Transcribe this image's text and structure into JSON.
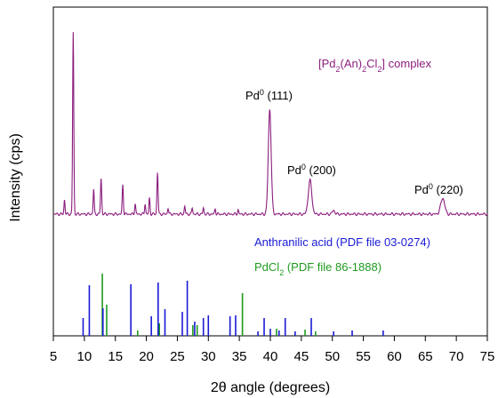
{
  "chart_data": {
    "type": "line",
    "xlabel": "2θ angle (degrees)",
    "ylabel": "Intensity (cps)",
    "xlim": [
      5,
      75
    ],
    "x_ticks": [
      5,
      10,
      15,
      20,
      25,
      30,
      35,
      40,
      45,
      50,
      55,
      60,
      65,
      70,
      75
    ],
    "grid": false,
    "series": [
      {
        "name": "[Pd2(An)2Cl2] complex",
        "color": "#8B1E7E",
        "baseline": 10,
        "peaks": [
          {
            "x": 6.8,
            "h": 16,
            "w": 0.12
          },
          {
            "x": 8.2,
            "h": 205,
            "w": 0.13
          },
          {
            "x": 11.5,
            "h": 28,
            "w": 0.12
          },
          {
            "x": 12.7,
            "h": 40,
            "w": 0.13
          },
          {
            "x": 16.2,
            "h": 33,
            "w": 0.13
          },
          {
            "x": 18.2,
            "h": 12,
            "w": 0.12
          },
          {
            "x": 19.8,
            "h": 12,
            "w": 0.12
          },
          {
            "x": 20.5,
            "h": 18,
            "w": 0.12
          },
          {
            "x": 21.8,
            "h": 47,
            "w": 0.13
          },
          {
            "x": 23.5,
            "h": 7,
            "w": 0.12
          },
          {
            "x": 26.2,
            "h": 9,
            "w": 0.12
          },
          {
            "x": 27.4,
            "h": 7,
            "w": 0.12
          },
          {
            "x": 29.2,
            "h": 7,
            "w": 0.12
          },
          {
            "x": 31.1,
            "h": 6,
            "w": 0.12
          },
          {
            "x": 34.8,
            "h": 5,
            "w": 0.12
          },
          {
            "x": 39.9,
            "h": 118,
            "w": 0.33
          },
          {
            "x": 46.4,
            "h": 38,
            "w": 0.4
          },
          {
            "x": 50.2,
            "h": 4,
            "w": 0.3
          },
          {
            "x": 67.8,
            "h": 18,
            "w": 0.45
          }
        ]
      },
      {
        "name": "Anthranilic acid (PDF file 03-0274)",
        "color": "#1A1AD6",
        "type": "stick",
        "x": [
          9.8,
          10.8,
          13.0,
          17.5,
          20.8,
          21.9,
          23.0,
          25.8,
          26.6,
          27.8,
          29.2,
          30.0,
          33.5,
          34.4,
          38.0,
          39.0,
          40.0,
          41.4,
          42.4,
          44.0,
          46.6,
          50.2,
          53.2,
          58.2
        ],
        "y": [
          20,
          57,
          31,
          58,
          22,
          60,
          30,
          27,
          62,
          16,
          20,
          23,
          22,
          23,
          5,
          20,
          8,
          6,
          20,
          5,
          20,
          5,
          6,
          6
        ]
      },
      {
        "name": "PdCl2 (PDF file 86-1888)",
        "color": "#1F9A1F",
        "type": "stick",
        "x": [
          12.9,
          13.6,
          18.6,
          22.1,
          27.5,
          28.2,
          33.5,
          35.5,
          41.0,
          45.6,
          47.3
        ],
        "y": [
          70,
          35,
          6,
          14,
          12,
          12,
          7,
          48,
          8,
          7,
          5
        ]
      }
    ],
    "annotations": [
      {
        "label": "Pd",
        "sup": "0",
        "miller": "(111)",
        "x": 39.9
      },
      {
        "label": "Pd",
        "sup": "0",
        "miller": "(200)",
        "x": 46.4
      },
      {
        "label": "Pd",
        "sup": "0",
        "miller": "(220)",
        "x": 67.8
      }
    ]
  }
}
